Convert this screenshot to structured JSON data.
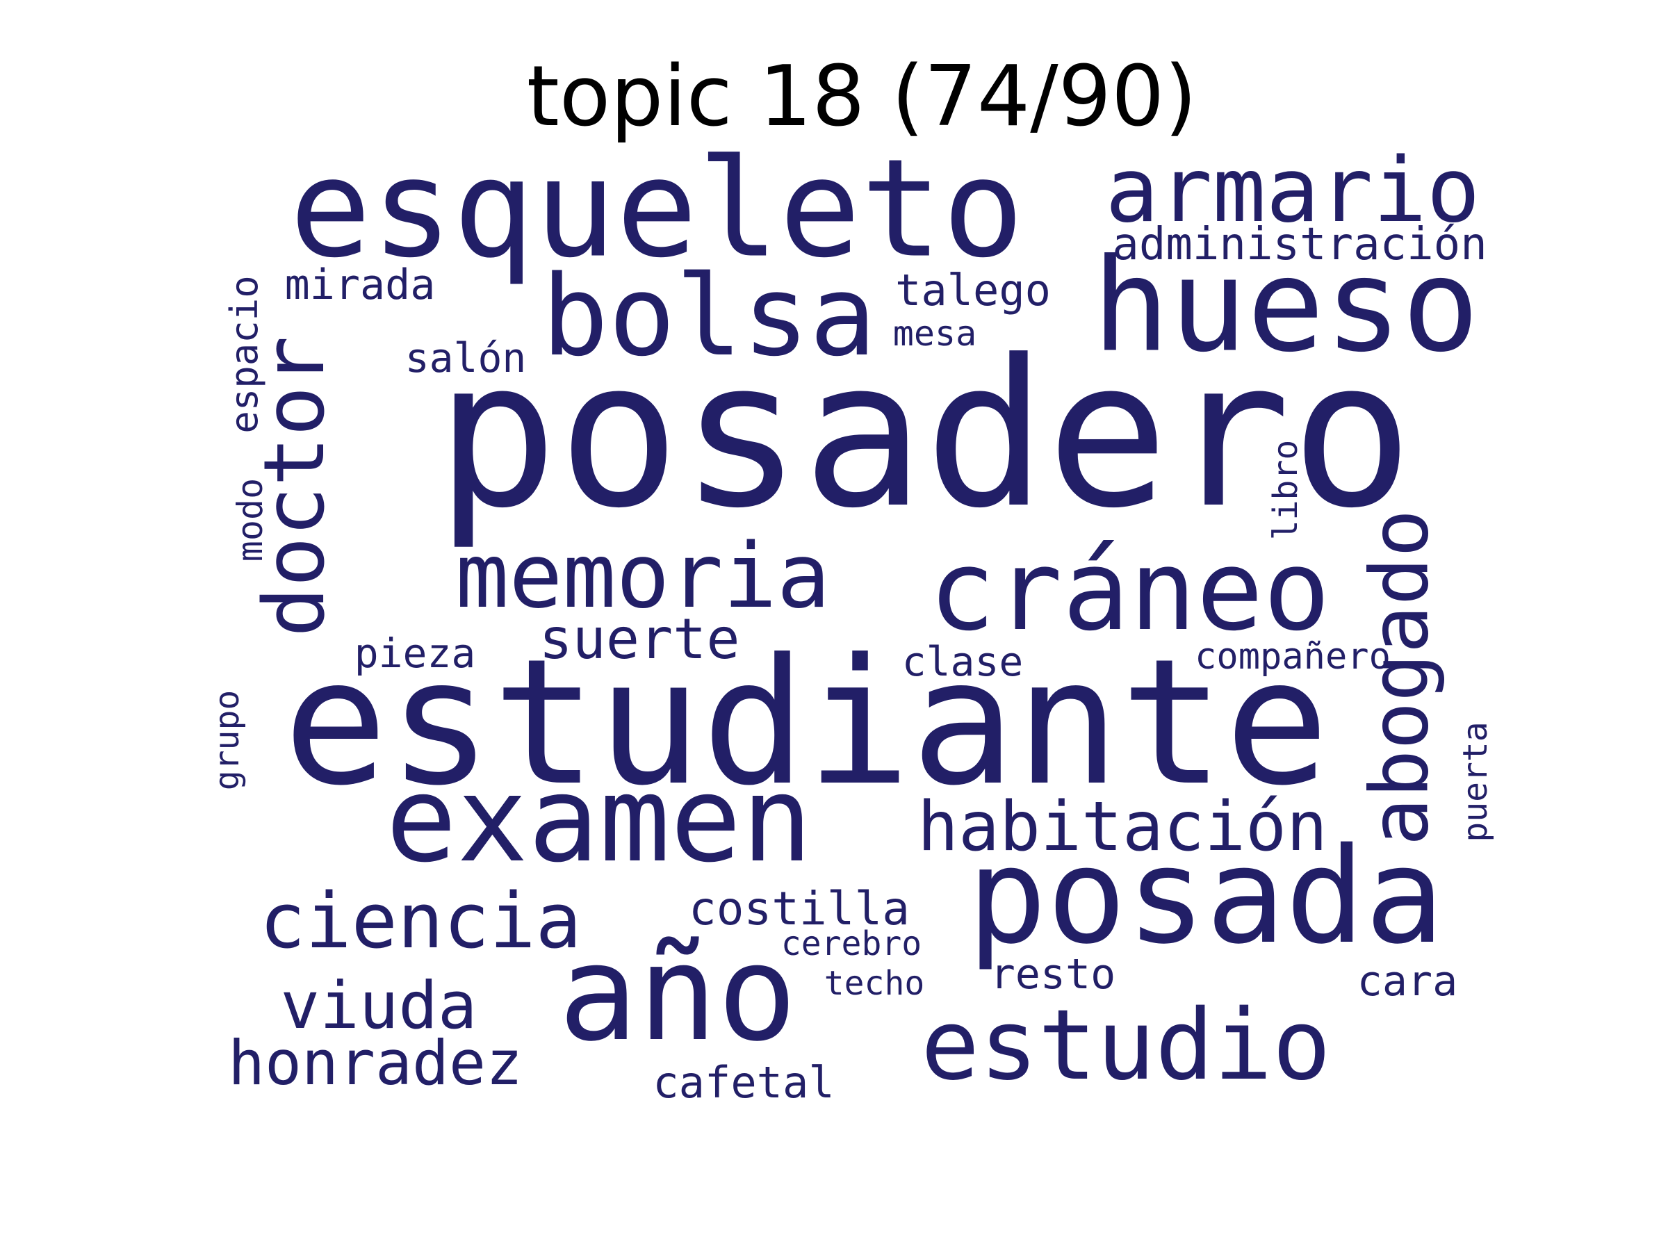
{
  "title": "topic 18 (74/90)",
  "word_color": "#221f67",
  "words": [
    {
      "text": "posadero",
      "orientation": "horizontal"
    },
    {
      "text": "estudiante",
      "orientation": "horizontal"
    },
    {
      "text": "esqueleto",
      "orientation": "horizontal"
    },
    {
      "text": "hueso",
      "orientation": "horizontal"
    },
    {
      "text": "posada",
      "orientation": "horizontal"
    },
    {
      "text": "año",
      "orientation": "horizontal"
    },
    {
      "text": "examen",
      "orientation": "horizontal"
    },
    {
      "text": "cráneo",
      "orientation": "horizontal"
    },
    {
      "text": "bolsa",
      "orientation": "horizontal"
    },
    {
      "text": "estudio",
      "orientation": "horizontal"
    },
    {
      "text": "armario",
      "orientation": "horizontal"
    },
    {
      "text": "memoria",
      "orientation": "horizontal"
    },
    {
      "text": "doctor",
      "orientation": "vertical"
    },
    {
      "text": "abogado",
      "orientation": "vertical"
    },
    {
      "text": "ciencia",
      "orientation": "horizontal"
    },
    {
      "text": "habitación",
      "orientation": "horizontal"
    },
    {
      "text": "viuda",
      "orientation": "horizontal"
    },
    {
      "text": "honradez",
      "orientation": "horizontal"
    },
    {
      "text": "suerte",
      "orientation": "horizontal"
    },
    {
      "text": "costilla",
      "orientation": "horizontal"
    },
    {
      "text": "administración",
      "orientation": "horizontal"
    },
    {
      "text": "talego",
      "orientation": "horizontal"
    },
    {
      "text": "mirada",
      "orientation": "horizontal"
    },
    {
      "text": "salón",
      "orientation": "horizontal"
    },
    {
      "text": "espacio",
      "orientation": "vertical"
    },
    {
      "text": "cafetal",
      "orientation": "horizontal"
    },
    {
      "text": "resto",
      "orientation": "horizontal"
    },
    {
      "text": "cara",
      "orientation": "horizontal"
    },
    {
      "text": "clase",
      "orientation": "horizontal"
    },
    {
      "text": "pieza",
      "orientation": "horizontal"
    },
    {
      "text": "compañero",
      "orientation": "horizontal"
    },
    {
      "text": "mesa",
      "orientation": "horizontal"
    },
    {
      "text": "modo",
      "orientation": "vertical"
    },
    {
      "text": "grupo",
      "orientation": "vertical"
    },
    {
      "text": "puerta",
      "orientation": "vertical"
    },
    {
      "text": "libro",
      "orientation": "vertical"
    },
    {
      "text": "cerebro",
      "orientation": "horizontal"
    },
    {
      "text": "techo",
      "orientation": "horizontal"
    }
  ]
}
